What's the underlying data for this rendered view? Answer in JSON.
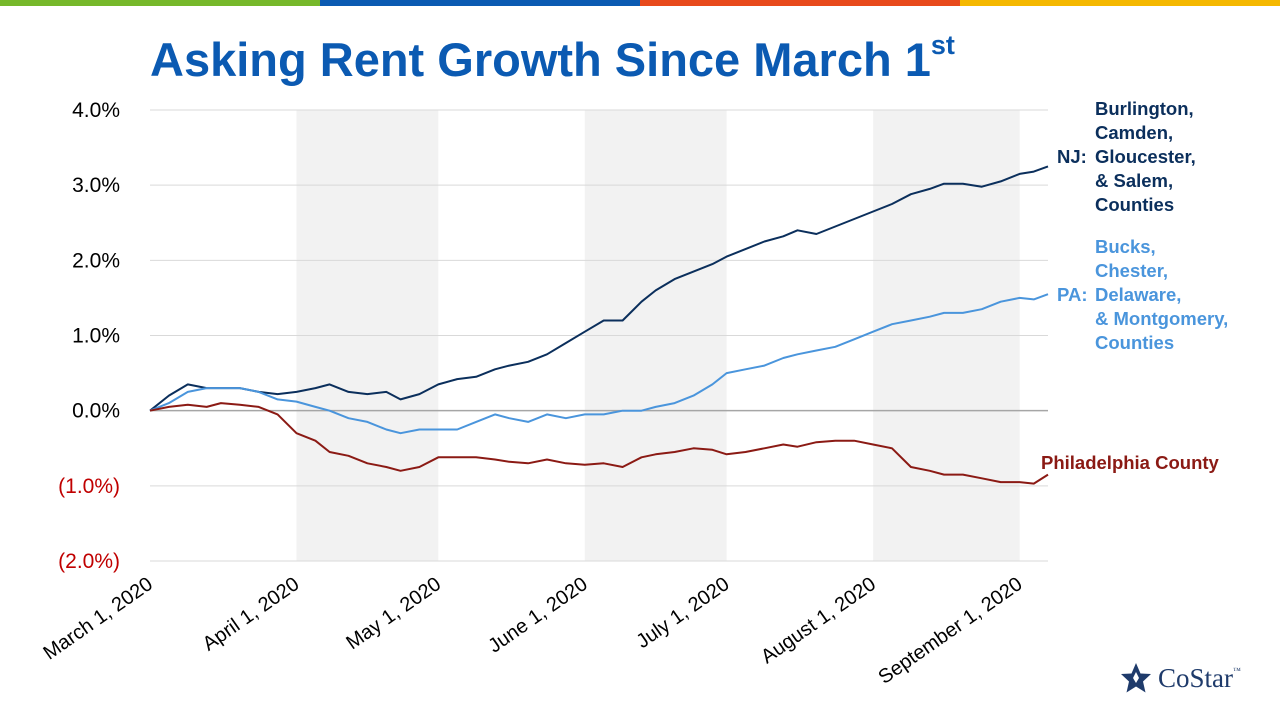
{
  "colors": {
    "top_bar": [
      "#76b82a",
      "#0b5ab2",
      "#e84a1b",
      "#f5b800"
    ],
    "title": "#0b5ab2",
    "nj": "#0b2f5c",
    "pa": "#4a95dc",
    "phl": "#8b1a14",
    "shade": "#f2f2f2",
    "grid": "#d9d9d9",
    "zero_line": "#a6a6a6",
    "negative_tick": "#c00000",
    "logo": "#1f3b6b"
  },
  "title": {
    "main": "Asking Rent Growth Since March 1",
    "superscript": "st"
  },
  "legend": {
    "nj": {
      "prefix": "NJ:",
      "lines": [
        "Burlington,",
        "Camden,",
        "Gloucester,",
        "& Salem,",
        "Counties"
      ]
    },
    "pa": {
      "prefix": "PA:",
      "lines": [
        "Bucks,",
        "Chester,",
        "Delaware,",
        "& Montgomery,",
        "Counties"
      ]
    },
    "phl": {
      "label": "Philadelphia County"
    }
  },
  "logo": {
    "text": "CoStar",
    "tm": "™",
    "icon": "costar-star-icon"
  },
  "chart_data": {
    "type": "line",
    "x_start": "2020-03-01",
    "x_end": "2020-09-07",
    "ylim": [
      -0.02,
      0.04
    ],
    "y_ticks": [
      {
        "value": 0.04,
        "label": "4.0%"
      },
      {
        "value": 0.03,
        "label": "3.0%"
      },
      {
        "value": 0.02,
        "label": "2.0%"
      },
      {
        "value": 0.01,
        "label": "1.0%"
      },
      {
        "value": 0.0,
        "label": "0.0%"
      },
      {
        "value": -0.01,
        "label": "(1.0%)"
      },
      {
        "value": -0.02,
        "label": "(2.0%)"
      }
    ],
    "x_ticks": [
      {
        "date": "2020-03-01",
        "label": "March 1, 2020"
      },
      {
        "date": "2020-04-01",
        "label": "April 1, 2020"
      },
      {
        "date": "2020-05-01",
        "label": "May 1, 2020"
      },
      {
        "date": "2020-06-01",
        "label": "June 1, 2020"
      },
      {
        "date": "2020-07-01",
        "label": "July 1, 2020"
      },
      {
        "date": "2020-08-01",
        "label": "August 1, 2020"
      },
      {
        "date": "2020-09-01",
        "label": "September 1, 2020"
      }
    ],
    "shaded_months": [
      [
        "2020-04-01",
        "2020-05-01"
      ],
      [
        "2020-06-01",
        "2020-07-01"
      ],
      [
        "2020-08-01",
        "2020-09-01"
      ]
    ],
    "grid": true,
    "legend_placement": "right",
    "series": [
      {
        "key": "nj",
        "color": "#0b2f5c",
        "x": [
          "2020-03-01",
          "2020-03-05",
          "2020-03-09",
          "2020-03-13",
          "2020-03-16",
          "2020-03-20",
          "2020-03-24",
          "2020-03-28",
          "2020-04-01",
          "2020-04-05",
          "2020-04-08",
          "2020-04-12",
          "2020-04-16",
          "2020-04-20",
          "2020-04-23",
          "2020-04-27",
          "2020-05-01",
          "2020-05-05",
          "2020-05-09",
          "2020-05-13",
          "2020-05-16",
          "2020-05-20",
          "2020-05-24",
          "2020-05-28",
          "2020-06-01",
          "2020-06-05",
          "2020-06-09",
          "2020-06-13",
          "2020-06-16",
          "2020-06-20",
          "2020-06-24",
          "2020-06-28",
          "2020-07-01",
          "2020-07-05",
          "2020-07-09",
          "2020-07-13",
          "2020-07-16",
          "2020-07-20",
          "2020-07-24",
          "2020-07-28",
          "2020-08-01",
          "2020-08-05",
          "2020-08-09",
          "2020-08-13",
          "2020-08-16",
          "2020-08-20",
          "2020-08-24",
          "2020-08-28",
          "2020-09-01",
          "2020-09-04",
          "2020-09-07"
        ],
        "y": [
          0.0,
          0.002,
          0.0035,
          0.003,
          0.003,
          0.003,
          0.0025,
          0.0022,
          0.0025,
          0.003,
          0.0035,
          0.0025,
          0.0022,
          0.0025,
          0.0015,
          0.0022,
          0.0035,
          0.0042,
          0.0045,
          0.0055,
          0.006,
          0.0065,
          0.0075,
          0.009,
          0.0105,
          0.012,
          0.012,
          0.0145,
          0.016,
          0.0175,
          0.0185,
          0.0195,
          0.0205,
          0.0215,
          0.0225,
          0.0232,
          0.024,
          0.0235,
          0.0245,
          0.0255,
          0.0265,
          0.0275,
          0.0288,
          0.0295,
          0.0302,
          0.0302,
          0.0298,
          0.0305,
          0.0315,
          0.0318,
          0.0325
        ]
      },
      {
        "key": "pa",
        "color": "#4a95dc",
        "x": [
          "2020-03-01",
          "2020-03-05",
          "2020-03-09",
          "2020-03-13",
          "2020-03-16",
          "2020-03-20",
          "2020-03-24",
          "2020-03-28",
          "2020-04-01",
          "2020-04-05",
          "2020-04-08",
          "2020-04-12",
          "2020-04-16",
          "2020-04-20",
          "2020-04-23",
          "2020-04-27",
          "2020-05-01",
          "2020-05-05",
          "2020-05-09",
          "2020-05-13",
          "2020-05-16",
          "2020-05-20",
          "2020-05-24",
          "2020-05-28",
          "2020-06-01",
          "2020-06-05",
          "2020-06-09",
          "2020-06-13",
          "2020-06-16",
          "2020-06-20",
          "2020-06-24",
          "2020-06-28",
          "2020-07-01",
          "2020-07-05",
          "2020-07-09",
          "2020-07-13",
          "2020-07-16",
          "2020-07-20",
          "2020-07-24",
          "2020-07-28",
          "2020-08-01",
          "2020-08-05",
          "2020-08-09",
          "2020-08-13",
          "2020-08-16",
          "2020-08-20",
          "2020-08-24",
          "2020-08-28",
          "2020-09-01",
          "2020-09-04",
          "2020-09-07"
        ],
        "y": [
          0.0,
          0.001,
          0.0025,
          0.003,
          0.003,
          0.003,
          0.0025,
          0.0015,
          0.0012,
          0.0005,
          0.0,
          -0.001,
          -0.0015,
          -0.0025,
          -0.003,
          -0.0025,
          -0.0025,
          -0.0025,
          -0.0015,
          -0.0005,
          -0.001,
          -0.0015,
          -0.0005,
          -0.001,
          -0.0005,
          -0.0005,
          0.0,
          0.0,
          0.0005,
          0.001,
          0.002,
          0.0035,
          0.005,
          0.0055,
          0.006,
          0.007,
          0.0075,
          0.008,
          0.0085,
          0.0095,
          0.0105,
          0.0115,
          0.012,
          0.0125,
          0.013,
          0.013,
          0.0135,
          0.0145,
          0.015,
          0.0148,
          0.0155
        ]
      },
      {
        "key": "phl",
        "color": "#8b1a14",
        "x": [
          "2020-03-01",
          "2020-03-05",
          "2020-03-09",
          "2020-03-13",
          "2020-03-16",
          "2020-03-20",
          "2020-03-24",
          "2020-03-28",
          "2020-04-01",
          "2020-04-05",
          "2020-04-08",
          "2020-04-12",
          "2020-04-16",
          "2020-04-20",
          "2020-04-23",
          "2020-04-27",
          "2020-05-01",
          "2020-05-05",
          "2020-05-09",
          "2020-05-13",
          "2020-05-16",
          "2020-05-20",
          "2020-05-24",
          "2020-05-28",
          "2020-06-01",
          "2020-06-05",
          "2020-06-09",
          "2020-06-13",
          "2020-06-16",
          "2020-06-20",
          "2020-06-24",
          "2020-06-28",
          "2020-07-01",
          "2020-07-05",
          "2020-07-09",
          "2020-07-13",
          "2020-07-16",
          "2020-07-20",
          "2020-07-24",
          "2020-07-28",
          "2020-08-01",
          "2020-08-05",
          "2020-08-09",
          "2020-08-13",
          "2020-08-16",
          "2020-08-20",
          "2020-08-24",
          "2020-08-28",
          "2020-09-01",
          "2020-09-04",
          "2020-09-07"
        ],
        "y": [
          0.0,
          0.0005,
          0.0008,
          0.0005,
          0.001,
          0.0008,
          0.0005,
          -0.0005,
          -0.003,
          -0.004,
          -0.0055,
          -0.006,
          -0.007,
          -0.0075,
          -0.008,
          -0.0075,
          -0.0062,
          -0.0062,
          -0.0062,
          -0.0065,
          -0.0068,
          -0.007,
          -0.0065,
          -0.007,
          -0.0072,
          -0.007,
          -0.0075,
          -0.0062,
          -0.0058,
          -0.0055,
          -0.005,
          -0.0052,
          -0.0058,
          -0.0055,
          -0.005,
          -0.0045,
          -0.0048,
          -0.0042,
          -0.004,
          -0.004,
          -0.0045,
          -0.005,
          -0.0075,
          -0.008,
          -0.0085,
          -0.0085,
          -0.009,
          -0.0095,
          -0.0095,
          -0.0097,
          -0.0085
        ]
      }
    ]
  }
}
